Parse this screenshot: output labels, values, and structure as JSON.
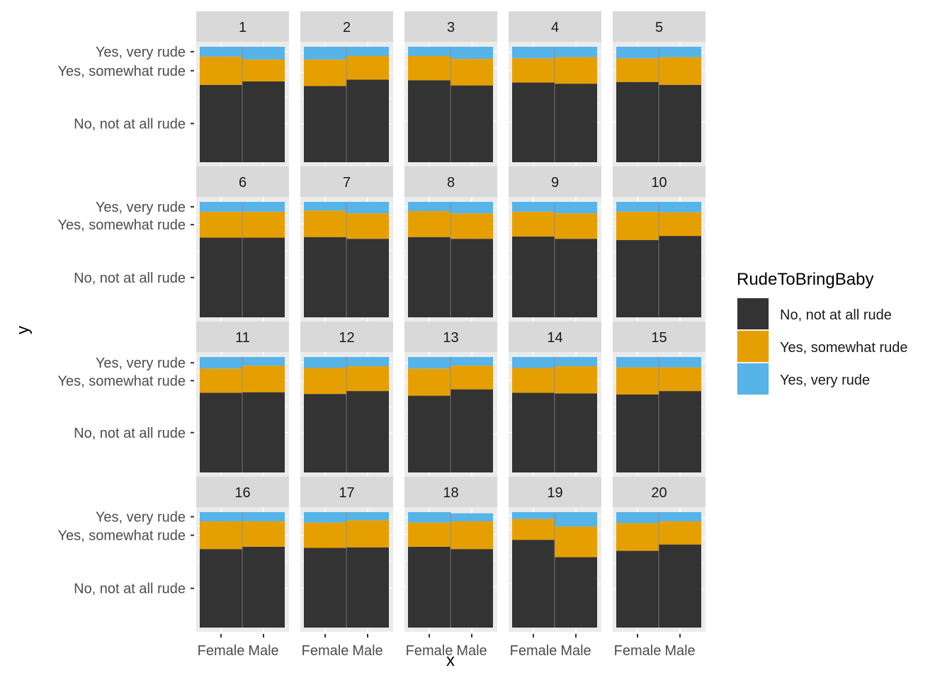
{
  "chart_data": {
    "type": "bar",
    "layout": "small multiples, 4 rows x 5 columns, stacked proportion bars",
    "xlabel": "x",
    "ylabel": "y",
    "categories": [
      "Female",
      "Male"
    ],
    "y_tick_labels": [
      "No, not at all rude",
      "Yes, somewhat rude",
      "Yes, very rude"
    ],
    "legend": {
      "title": "RudeToBringBaby",
      "position": "right",
      "entries": [
        {
          "label": "No, not at all rude",
          "color": "#333333"
        },
        {
          "label": "Yes, somewhat rude",
          "color": "#E69F00"
        },
        {
          "label": "Yes, very rude",
          "color": "#56B4E9"
        }
      ]
    },
    "colors": {
      "panel_background": "#EBEBEB",
      "strip_background": "#D9D9D9",
      "gridline": "#FFFFFF",
      "bar_divider": "#888888"
    },
    "panels": [
      {
        "label": "1",
        "female": [
          0.67,
          0.245,
          0.085
        ],
        "male": [
          0.7,
          0.19,
          0.11
        ]
      },
      {
        "label": "2",
        "female": [
          0.66,
          0.23,
          0.11
        ],
        "male": [
          0.715,
          0.205,
          0.08
        ]
      },
      {
        "label": "3",
        "female": [
          0.71,
          0.21,
          0.08
        ],
        "male": [
          0.665,
          0.23,
          0.105
        ]
      },
      {
        "label": "4",
        "female": [
          0.69,
          0.21,
          0.1
        ],
        "male": [
          0.68,
          0.23,
          0.09
        ]
      },
      {
        "label": "5",
        "female": [
          0.695,
          0.205,
          0.1
        ],
        "male": [
          0.67,
          0.24,
          0.09
        ]
      },
      {
        "label": "6",
        "female": [
          0.69,
          0.225,
          0.085
        ],
        "male": [
          0.69,
          0.225,
          0.085
        ]
      },
      {
        "label": "7",
        "female": [
          0.695,
          0.23,
          0.075
        ],
        "male": [
          0.68,
          0.22,
          0.1
        ]
      },
      {
        "label": "8",
        "female": [
          0.695,
          0.225,
          0.08
        ],
        "male": [
          0.68,
          0.22,
          0.1
        ]
      },
      {
        "label": "9",
        "female": [
          0.7,
          0.215,
          0.085
        ],
        "male": [
          0.68,
          0.22,
          0.1
        ]
      },
      {
        "label": "10",
        "female": [
          0.67,
          0.245,
          0.085
        ],
        "male": [
          0.705,
          0.205,
          0.09
        ]
      },
      {
        "label": "11",
        "female": [
          0.69,
          0.21,
          0.1
        ],
        "male": [
          0.695,
          0.23,
          0.075
        ]
      },
      {
        "label": "12",
        "female": [
          0.68,
          0.225,
          0.095
        ],
        "male": [
          0.705,
          0.215,
          0.08
        ]
      },
      {
        "label": "13",
        "female": [
          0.665,
          0.235,
          0.1
        ],
        "male": [
          0.72,
          0.205,
          0.075
        ]
      },
      {
        "label": "14",
        "female": [
          0.69,
          0.215,
          0.095
        ],
        "male": [
          0.685,
          0.235,
          0.08
        ]
      },
      {
        "label": "15",
        "female": [
          0.675,
          0.235,
          0.09
        ],
        "male": [
          0.705,
          0.205,
          0.09
        ]
      },
      {
        "label": "16",
        "female": [
          0.68,
          0.24,
          0.08
        ],
        "male": [
          0.7,
          0.22,
          0.08
        ]
      },
      {
        "label": "17",
        "female": [
          0.69,
          0.22,
          0.09
        ],
        "male": [
          0.695,
          0.235,
          0.07
        ]
      },
      {
        "label": "18",
        "female": [
          0.7,
          0.21,
          0.09
        ],
        "male": [
          0.68,
          0.24,
          0.07
        ]
      },
      {
        "label": "19",
        "female": [
          0.76,
          0.18,
          0.06
        ],
        "male": [
          0.61,
          0.265,
          0.125
        ]
      },
      {
        "label": "20",
        "female": [
          0.665,
          0.24,
          0.095
        ],
        "male": [
          0.72,
          0.2,
          0.08
        ]
      }
    ]
  }
}
